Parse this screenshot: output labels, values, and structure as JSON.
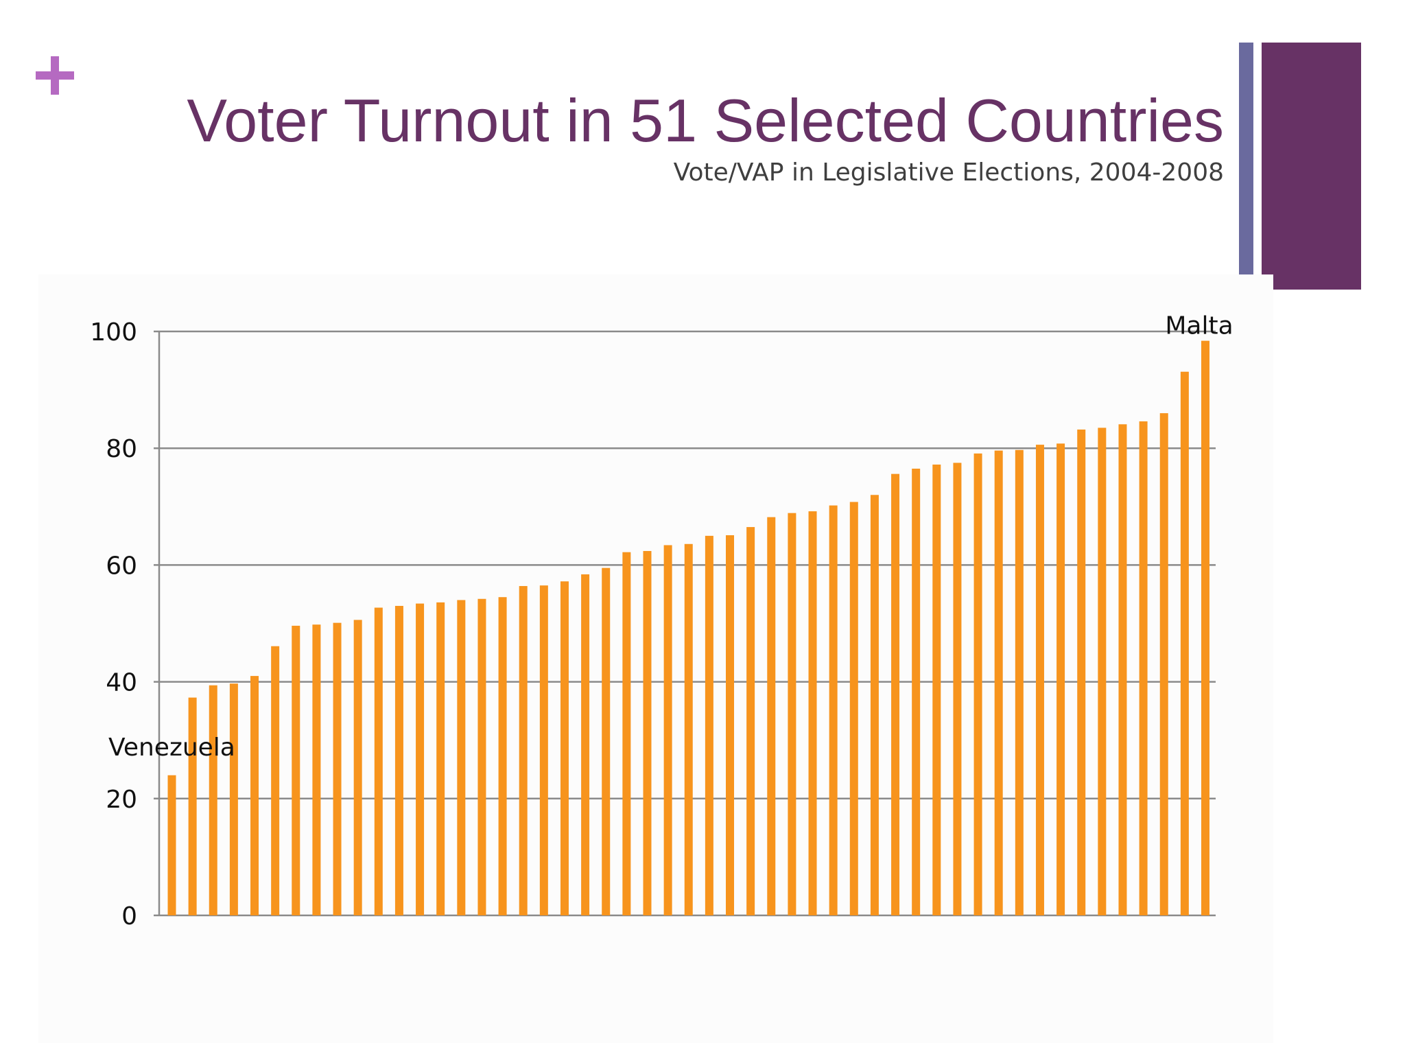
{
  "slide": {
    "title": "Voter Turnout in 51 Selected Countries",
    "subtitle": "Vote/VAP in Legislative Elections, 2004-2008",
    "colors": {
      "title": "#673265",
      "plus_icon": "#b56ac1",
      "accent_thin": "#6a6a9e",
      "accent_wide": "#673265"
    },
    "icons": [
      "plus-icon"
    ]
  },
  "chart_data": {
    "type": "bar",
    "title": "",
    "xlabel": "",
    "ylabel": "",
    "ylim": [
      0,
      100
    ],
    "yticks": [
      0,
      20,
      40,
      60,
      80,
      100
    ],
    "grid": true,
    "legend": "none",
    "bar_color": "#f7941d",
    "series": [
      {
        "values": [
          24,
          37.3,
          39.4,
          39.7,
          41,
          46.1,
          49.6,
          49.8,
          50.1,
          50.6,
          52.7,
          53,
          53.4,
          53.6,
          54,
          54.2,
          54.5,
          56.4,
          56.5,
          57.2,
          58.4,
          59.5,
          62.2,
          62.4,
          63.4,
          63.6,
          65,
          65.1,
          66.5,
          68.2,
          68.9,
          69.2,
          70.2,
          70.8,
          72,
          75.6,
          76.5,
          77.2,
          77.5,
          79.1,
          79.6,
          79.7,
          80.6,
          80.8,
          83.2,
          83.5,
          84.1,
          84.6,
          86,
          93.1,
          98.4
        ]
      }
    ],
    "annotations": [
      {
        "text": "Venezuela",
        "index": 0
      },
      {
        "text": "Malta",
        "index": 50
      }
    ]
  }
}
